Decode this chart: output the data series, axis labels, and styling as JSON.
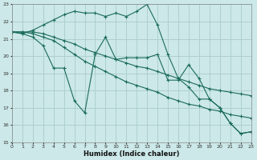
{
  "xlabel": "Humidex (Indice chaleur)",
  "bg_color": "#cce8e8",
  "grid_color": "#aacccc",
  "line_color": "#1a6b5a",
  "xlim": [
    0,
    23
  ],
  "ylim": [
    15,
    23
  ],
  "xticks": [
    0,
    1,
    2,
    3,
    4,
    5,
    6,
    7,
    8,
    9,
    10,
    11,
    12,
    13,
    14,
    15,
    16,
    17,
    18,
    19,
    20,
    21,
    22,
    23
  ],
  "yticks": [
    15,
    16,
    17,
    18,
    19,
    20,
    21,
    22,
    23
  ],
  "lines": [
    {
      "x": [
        0,
        1,
        2,
        3,
        4,
        5,
        6,
        7,
        8,
        9,
        10,
        11,
        12,
        13,
        14,
        15,
        16,
        17,
        18,
        19,
        20,
        21,
        22,
        23
      ],
      "y": [
        21.4,
        21.3,
        21.5,
        21.8,
        22.1,
        22.4,
        22.6,
        22.5,
        22.5,
        22.3,
        22.5,
        22.3,
        22.6,
        23.0,
        21.8,
        20.1,
        18.7,
        18.2,
        17.5,
        17.5,
        17.0,
        16.1,
        15.5,
        15.6
      ]
    },
    {
      "x": [
        0,
        1,
        2,
        3,
        4,
        5,
        6,
        7,
        8,
        9,
        10,
        11,
        12,
        13,
        14,
        15,
        16,
        17,
        18,
        19,
        20,
        21,
        22,
        23
      ],
      "y": [
        21.4,
        21.3,
        21.1,
        20.6,
        19.3,
        19.3,
        17.4,
        16.7,
        20.1,
        21.1,
        19.8,
        19.9,
        19.9,
        19.9,
        20.1,
        18.6,
        18.6,
        19.5,
        18.7,
        17.5,
        17.0,
        16.1,
        15.5,
        15.6
      ]
    },
    {
      "x": [
        0,
        1,
        2,
        3,
        4,
        5,
        6,
        7,
        8,
        9,
        10,
        11,
        12,
        13,
        14,
        15,
        16,
        17,
        18,
        19,
        20,
        21,
        22,
        23
      ],
      "y": [
        21.4,
        21.4,
        21.3,
        21.1,
        20.9,
        20.5,
        20.1,
        19.7,
        19.4,
        19.1,
        18.8,
        18.5,
        18.3,
        18.1,
        17.9,
        17.6,
        17.4,
        17.2,
        17.1,
        16.9,
        16.8,
        16.6,
        16.5,
        16.4
      ]
    },
    {
      "x": [
        0,
        1,
        2,
        3,
        4,
        5,
        6,
        7,
        8,
        9,
        10,
        11,
        12,
        13,
        14,
        15,
        16,
        17,
        18,
        19,
        20,
        21,
        22,
        23
      ],
      "y": [
        21.4,
        21.4,
        21.4,
        21.3,
        21.1,
        20.9,
        20.7,
        20.4,
        20.2,
        20.0,
        19.8,
        19.6,
        19.4,
        19.3,
        19.1,
        18.9,
        18.7,
        18.5,
        18.3,
        18.1,
        18.0,
        17.9,
        17.8,
        17.7
      ]
    }
  ]
}
